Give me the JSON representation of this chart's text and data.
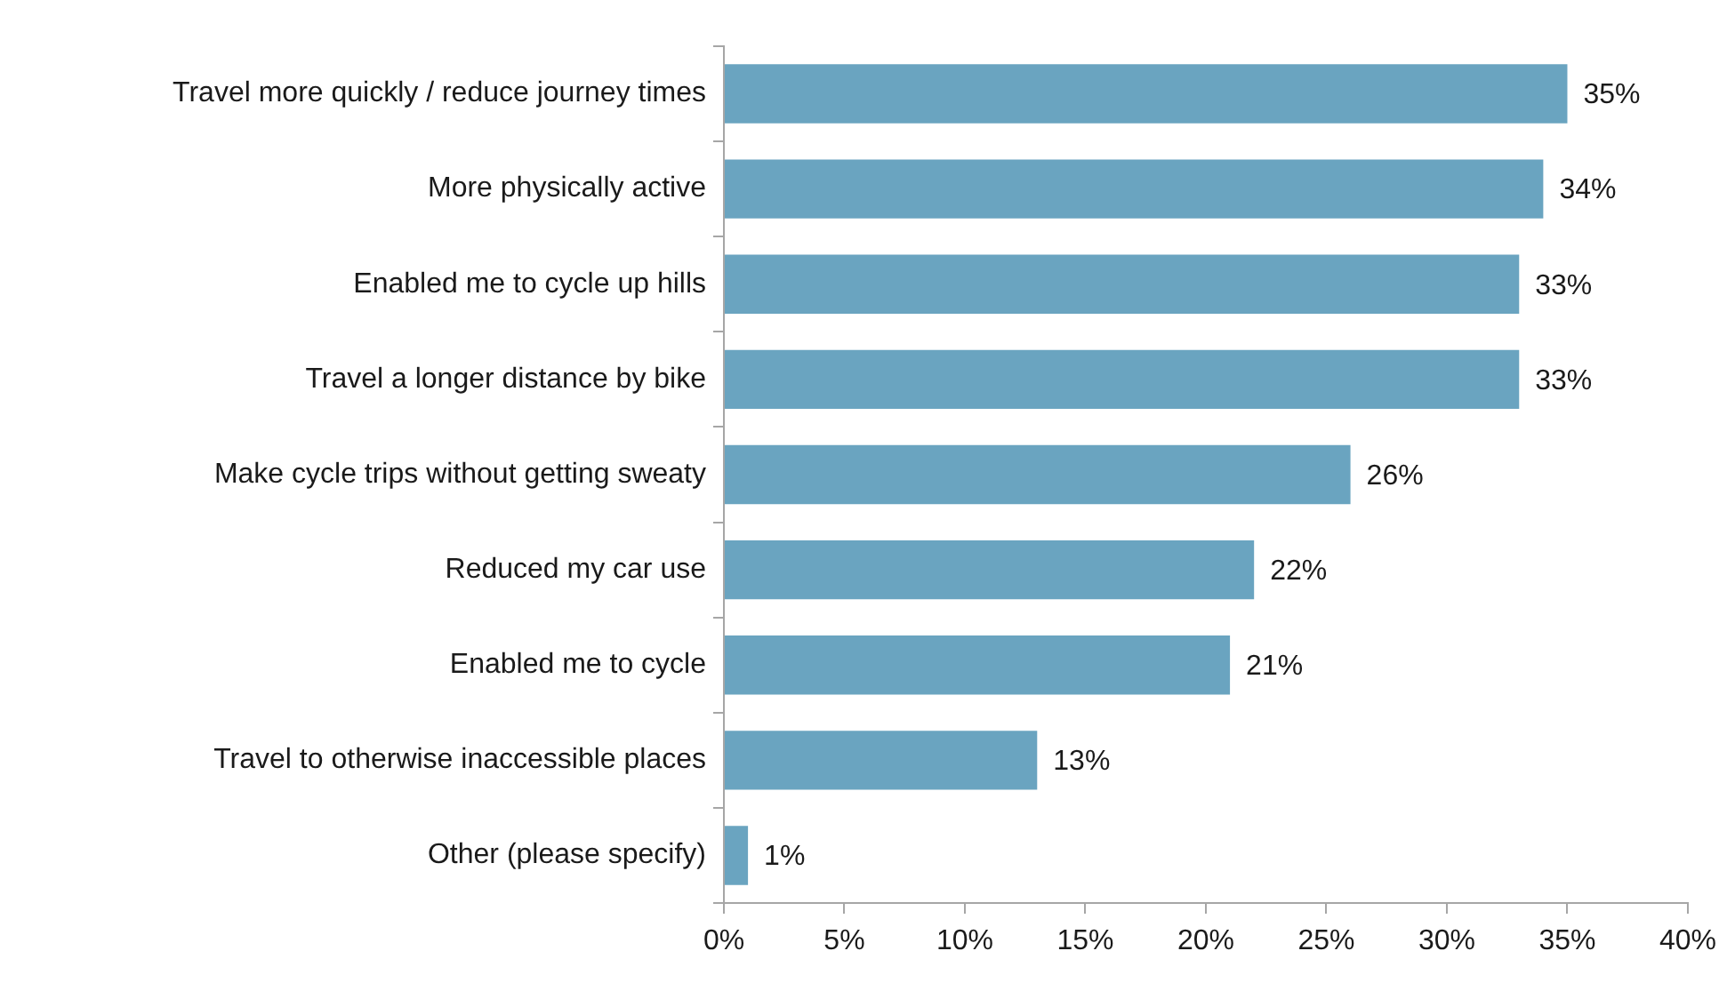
{
  "chart_data": {
    "type": "bar",
    "orientation": "horizontal",
    "categories": [
      "Travel more quickly / reduce journey times",
      "More physically active",
      "Enabled me to cycle up hills",
      "Travel a longer distance by bike",
      "Make cycle trips without getting sweaty",
      "Reduced my car use",
      "Enabled me to cycle",
      "Travel to otherwise inaccessible places",
      "Other (please specify)"
    ],
    "values": [
      35,
      34,
      33,
      33,
      26,
      22,
      21,
      13,
      1
    ],
    "color": "#6aa4c0",
    "value_labels": [
      "35%",
      "34%",
      "33%",
      "33%",
      "26%",
      "22%",
      "21%",
      "13%",
      "1%"
    ],
    "xlim": [
      0,
      40
    ],
    "xticks": [
      {
        "value": 0,
        "label": "0%"
      },
      {
        "value": 5,
        "label": "5%"
      },
      {
        "value": 10,
        "label": "10%"
      },
      {
        "value": 15,
        "label": "15%"
      },
      {
        "value": 20,
        "label": "20%"
      },
      {
        "value": 25,
        "label": "25%"
      },
      {
        "value": 30,
        "label": "30%"
      },
      {
        "value": 35,
        "label": "35%"
      },
      {
        "value": 40,
        "label": "40%"
      }
    ],
    "grid": false,
    "legend": false
  }
}
